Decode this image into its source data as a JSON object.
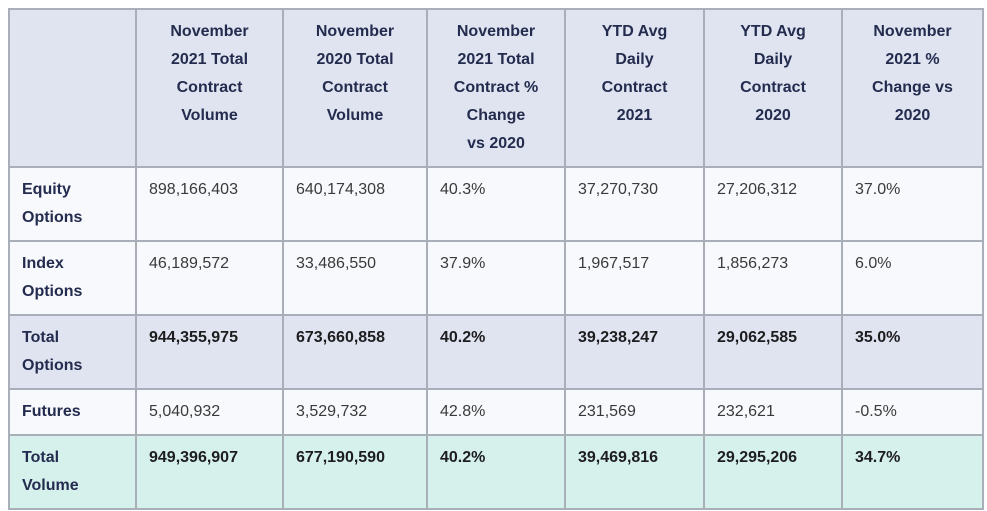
{
  "colors": {
    "header_bg": "#e0e4f0",
    "data_row_bg": "#f8f9fc",
    "highlight_row_bg": "#e0e4f0",
    "total_row_bg": "#d6f1ec",
    "border": "#a9afb8",
    "outer_border": "#8f969f",
    "header_text": "#232c4e",
    "data_text": "#3a3a3a",
    "bold_data_text": "#1d1d1f"
  },
  "chart_data": {
    "type": "table",
    "title": "",
    "columns": [
      "",
      "November\n2021 Total\nContract\nVolume",
      "November\n2020 Total\nContract\nVolume",
      "November\n2021 Total\nContract %\nChange\nvs 2020",
      "YTD Avg\nDaily\nContract\n2021",
      "YTD Avg\nDaily\nContract\n2020",
      "November\n2021 %\nChange vs\n2020"
    ],
    "rows": [
      {
        "label": "Equity\nOptions",
        "style": "normal tall",
        "values": [
          "898,166,403",
          "640,174,308",
          "40.3%",
          "37,270,730",
          "27,206,312",
          "37.0%"
        ]
      },
      {
        "label": "Index\nOptions",
        "style": "normal tall",
        "values": [
          "46,189,572",
          "33,486,550",
          "37.9%",
          "1,967,517",
          "1,856,273",
          "6.0%"
        ]
      },
      {
        "label": "Total\nOptions",
        "style": "highlight tall",
        "values": [
          "944,355,975",
          "673,660,858",
          "40.2%",
          "39,238,247",
          "29,062,585",
          "35.0%"
        ]
      },
      {
        "label": "Futures",
        "style": "normal short",
        "values": [
          "5,040,932",
          "3,529,732",
          "42.8%",
          "231,569",
          "232,621",
          "-0.5%"
        ]
      },
      {
        "label": "Total\nVolume",
        "style": "total tall",
        "values": [
          "949,396,907",
          "677,190,590",
          "40.2%",
          "39,469,816",
          "29,295,206",
          "34.7%"
        ]
      }
    ]
  }
}
